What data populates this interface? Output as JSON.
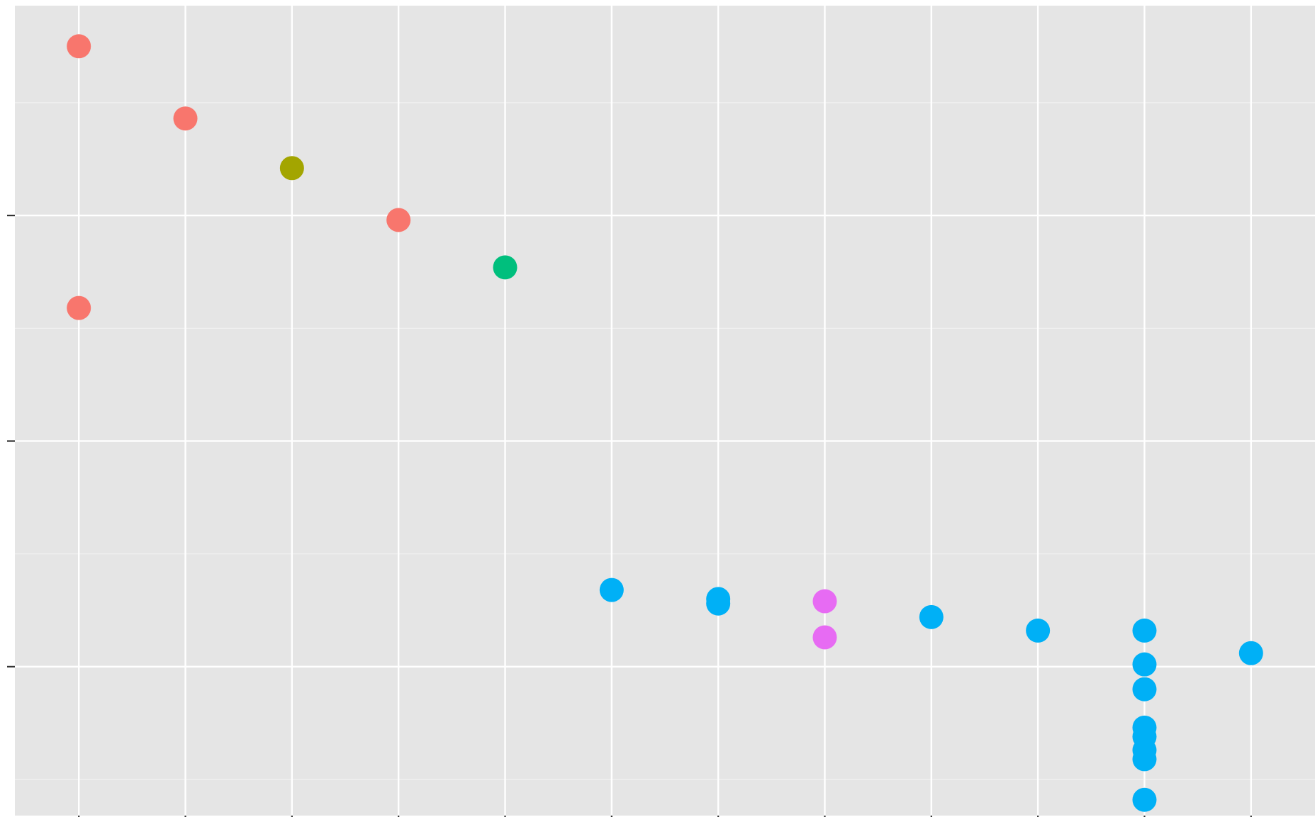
{
  "chart_data": {
    "type": "scatter",
    "title": "",
    "xlabel": "",
    "ylabel": "",
    "grid": true,
    "legend": "none",
    "xlim": [
      0.4,
      12.6
    ],
    "ylim": [
      -0.66,
      2.93
    ],
    "x_ticks": [
      1,
      2,
      3,
      4,
      5,
      6,
      7,
      8,
      9,
      10,
      11,
      12
    ],
    "y_ticks": [
      0,
      1,
      2
    ],
    "y_minor_ticks": [
      -0.5,
      0.5,
      1.5,
      2.5
    ],
    "colors": {
      "panel_background": "#e5e5e5",
      "grid_major": "#ffffff",
      "grid_minor": "#f2f2f2",
      "tick": "#333333"
    },
    "series": [
      {
        "color": "#f8766d",
        "points": [
          [
            1,
            2.75
          ],
          [
            1,
            1.59
          ],
          [
            2,
            2.43
          ],
          [
            4,
            1.98
          ]
        ]
      },
      {
        "color": "#a3a500",
        "points": [
          [
            3,
            2.21
          ]
        ]
      },
      {
        "color": "#00bf7d",
        "points": [
          [
            5,
            1.77
          ]
        ]
      },
      {
        "color": "#00b0f6",
        "points": [
          [
            6,
            0.34
          ],
          [
            7,
            0.3
          ],
          [
            7,
            0.28
          ],
          [
            9,
            0.22
          ],
          [
            10,
            0.16
          ],
          [
            11,
            0.16
          ],
          [
            11,
            0.01
          ],
          [
            11,
            -0.1
          ],
          [
            11,
            -0.27
          ],
          [
            11,
            -0.31
          ],
          [
            11,
            -0.37
          ],
          [
            11,
            -0.41
          ],
          [
            11,
            -0.59
          ],
          [
            12,
            0.06
          ]
        ]
      },
      {
        "color": "#e76bf3",
        "points": [
          [
            8,
            0.29
          ],
          [
            8,
            0.13
          ]
        ]
      }
    ]
  }
}
